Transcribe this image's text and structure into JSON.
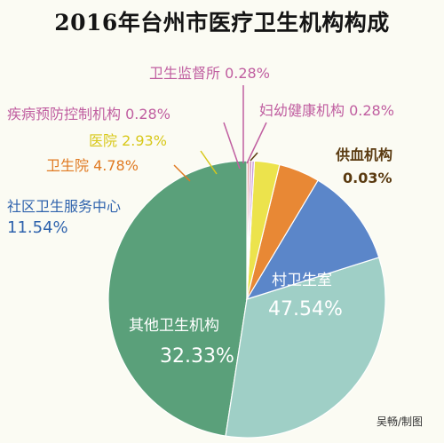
{
  "chart_data": {
    "type": "pie",
    "title": "2016年台州市医疗卫生机构构成",
    "slices": [
      {
        "name": "村卫生室",
        "value_label": "47.54%",
        "value": 47.54,
        "color": "#5aa07a"
      },
      {
        "name": "其他卫生机构",
        "value_label": "32.33%",
        "value": 32.33,
        "color": "#9fcfc6"
      },
      {
        "name": "社区卫生服务中心",
        "value_label": "11.54%",
        "value": 11.54,
        "color": "#5b86c9"
      },
      {
        "name": "卫生院",
        "value_label": "4.78%",
        "value": 4.78,
        "color": "#e88835"
      },
      {
        "name": "医院",
        "value_label": "2.93%",
        "value": 2.93,
        "color": "#ece34c"
      },
      {
        "name": "疾病预防控制机构",
        "value_label": "0.28%",
        "value": 0.28,
        "color": "#c998d8"
      },
      {
        "name": "卫生监督所",
        "value_label": "0.28%",
        "value": 0.28,
        "color": "#d18fbe"
      },
      {
        "name": "妇幼健康机构",
        "value_label": "0.28%",
        "value": 0.28,
        "color": "#e6a3a5"
      },
      {
        "name": "供血机构",
        "value_label": "0.03%",
        "value": 0.03,
        "color": "#6b4a1f"
      }
    ]
  },
  "label_colors": {
    "社区卫生服务中心": "#2f63ad",
    "卫生院": "#e07a22",
    "医院": "#d8c81a",
    "疾病预防控制机构": "#c05ea0",
    "卫生监督所": "#c05ea0",
    "妇幼健康机构": "#c05ea0",
    "供血机构": "#5a3a10"
  },
  "credit": "吴畅/制图"
}
